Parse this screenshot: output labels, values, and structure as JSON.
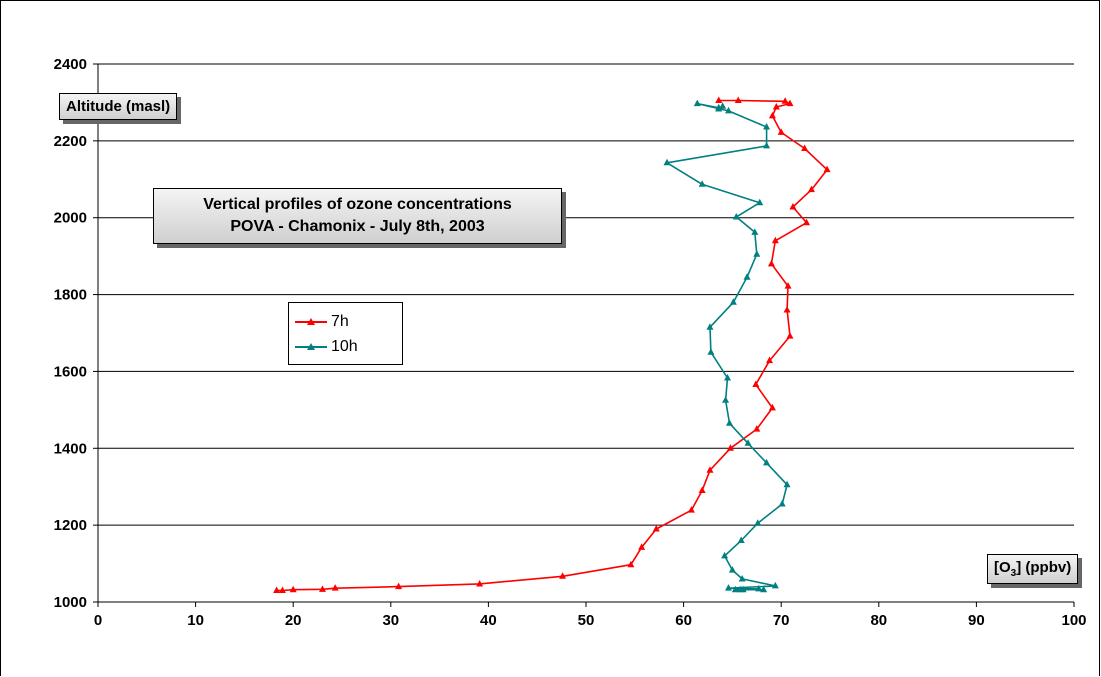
{
  "chart_data": {
    "type": "line",
    "title_lines": [
      "Vertical profiles of ozone concentrations",
      "POVA - Chamonix - July 8th, 2003"
    ],
    "xlabel": {
      "pre": "[O",
      "sub": "3",
      "post": "] (ppbv)"
    },
    "ylabel": "Altitude (masl)",
    "xlim": [
      0,
      100
    ],
    "ylim": [
      1000,
      2400
    ],
    "xticks": [
      "0",
      "10",
      "20",
      "30",
      "40",
      "50",
      "60",
      "70",
      "80",
      "90",
      "100"
    ],
    "yticks": [
      "1000",
      "1200",
      "1400",
      "1600",
      "1800",
      "2000",
      "2200",
      "2400"
    ],
    "grid": "horizontal",
    "legend_position": "center-left",
    "series": [
      {
        "name": "7h",
        "color": "#ff0000",
        "marker": "triangle",
        "points": [
          [
            18.3,
            1030
          ],
          [
            18.9,
            1030
          ],
          [
            20,
            1032
          ],
          [
            23,
            1033
          ],
          [
            24.3,
            1036
          ],
          [
            30.8,
            1040
          ],
          [
            39.1,
            1047
          ],
          [
            47.6,
            1067
          ],
          [
            54.6,
            1097
          ],
          [
            55.7,
            1142
          ],
          [
            57.2,
            1190
          ],
          [
            60.8,
            1239
          ],
          [
            61.9,
            1290
          ],
          [
            62.7,
            1343
          ],
          [
            64.8,
            1400
          ],
          [
            67.5,
            1450
          ],
          [
            69.1,
            1505
          ],
          [
            67.4,
            1566
          ],
          [
            68.8,
            1628
          ],
          [
            70.9,
            1692
          ],
          [
            70.6,
            1760
          ],
          [
            70.7,
            1822
          ],
          [
            69,
            1880
          ],
          [
            69.4,
            1940
          ],
          [
            72.6,
            1987
          ],
          [
            71.2,
            2028
          ],
          [
            73.1,
            2073
          ],
          [
            74.7,
            2125
          ],
          [
            72.4,
            2180
          ],
          [
            70,
            2222
          ],
          [
            69.1,
            2265
          ],
          [
            69.5,
            2288
          ],
          [
            70.9,
            2297
          ],
          [
            70.4,
            2303
          ],
          [
            65.6,
            2305
          ],
          [
            63.6,
            2305
          ]
        ]
      },
      {
        "name": "10h",
        "color": "#008080",
        "marker": "triangle",
        "points": [
          [
            68.2,
            1032
          ],
          [
            66.1,
            1032
          ],
          [
            65.8,
            1032
          ],
          [
            65.3,
            1032
          ],
          [
            67.7,
            1034
          ],
          [
            64.6,
            1036
          ],
          [
            69.4,
            1042
          ],
          [
            66,
            1060
          ],
          [
            65,
            1083
          ],
          [
            64.2,
            1120
          ],
          [
            65.9,
            1160
          ],
          [
            67.6,
            1205
          ],
          [
            70.1,
            1255
          ],
          [
            70.6,
            1305
          ],
          [
            68.5,
            1362
          ],
          [
            66.6,
            1413
          ],
          [
            64.7,
            1465
          ],
          [
            64.3,
            1525
          ],
          [
            64.5,
            1583
          ],
          [
            62.8,
            1650
          ],
          [
            62.7,
            1715
          ],
          [
            65.1,
            1780
          ],
          [
            66.5,
            1845
          ],
          [
            67.5,
            1905
          ],
          [
            67.3,
            1962
          ],
          [
            65.4,
            2002
          ],
          [
            67.8,
            2039
          ],
          [
            61.9,
            2087
          ],
          [
            58.3,
            2143
          ],
          [
            68.5,
            2187
          ],
          [
            68.5,
            2236
          ],
          [
            64.6,
            2278
          ],
          [
            61.4,
            2297
          ],
          [
            63.6,
            2286
          ],
          [
            63.6,
            2283
          ],
          [
            64.0,
            2290
          ]
        ]
      }
    ]
  }
}
